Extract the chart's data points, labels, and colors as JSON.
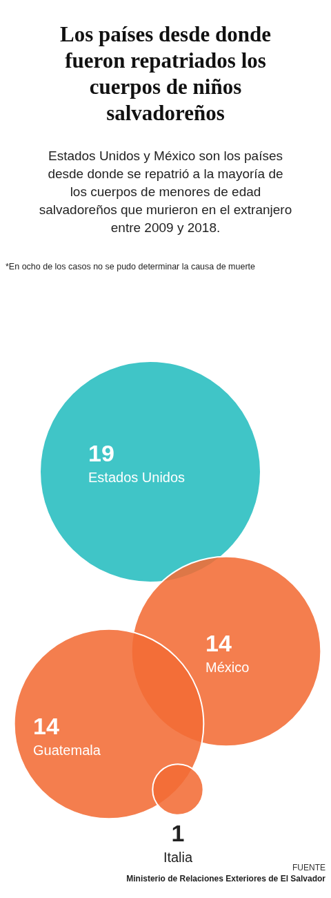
{
  "chart_data": {
    "type": "other",
    "title": "Los países desde donde fueron repatriados los cuerpos de niños salvadoreños",
    "subtitle": "Estados Unidos y México son los países desde donde se repatrió a la mayoría de los cuerpos de menores de edad salvadoreños que murieron en el extranjero entre 2009 y 2018.",
    "categories": [
      "Estados Unidos",
      "México",
      "Guatemala",
      "Italia"
    ],
    "values": [
      19,
      14,
      14,
      1
    ],
    "colors": [
      "#26bdbf",
      "#f26c35",
      "#f26c35",
      "#f26c35"
    ],
    "data_labels": true,
    "annotations": [
      "*En ocho de los casos no se pudo determinar la causa de muerte",
      "FUENTE",
      "Ministerio de Relaciones Exteriores de El Salvador"
    ]
  }
}
